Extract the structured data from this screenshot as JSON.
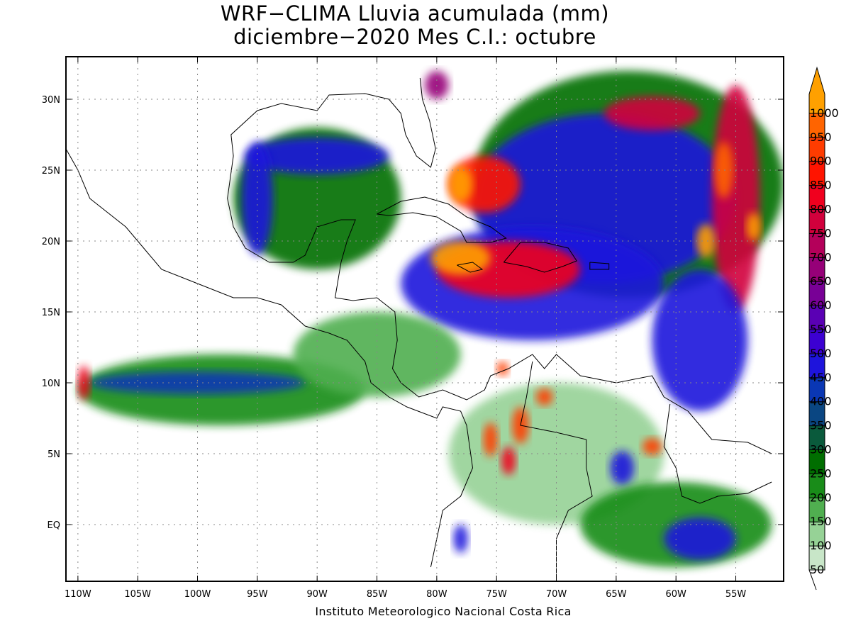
{
  "title": {
    "line1": "WRF−CLIMA Lluvia acumulada (mm)",
    "line2": "diciembre−2020 Mes C.I.: octubre"
  },
  "credit": "Instituto Meteorologico Nacional Costa Rica",
  "map": {
    "lon_range": [
      -111,
      -51
    ],
    "lat_range": [
      -4,
      33
    ],
    "lon_ticks": [
      {
        "value": -110,
        "label": "110W"
      },
      {
        "value": -105,
        "label": "105W"
      },
      {
        "value": -100,
        "label": "100W"
      },
      {
        "value": -95,
        "label": "95W"
      },
      {
        "value": -90,
        "label": "90W"
      },
      {
        "value": -85,
        "label": "85W"
      },
      {
        "value": -80,
        "label": "80W"
      },
      {
        "value": -75,
        "label": "75W"
      },
      {
        "value": -70,
        "label": "70W"
      },
      {
        "value": -65,
        "label": "65W"
      },
      {
        "value": -60,
        "label": "60W"
      },
      {
        "value": -55,
        "label": "55W"
      }
    ],
    "lat_ticks": [
      {
        "value": 30,
        "label": "30N"
      },
      {
        "value": 25,
        "label": "25N"
      },
      {
        "value": 20,
        "label": "20N"
      },
      {
        "value": 15,
        "label": "15N"
      },
      {
        "value": 10,
        "label": "10N"
      },
      {
        "value": 5,
        "label": "5N"
      },
      {
        "value": 0,
        "label": "EQ"
      }
    ],
    "grid": true
  },
  "legend": {
    "levels": [
      {
        "label": "50",
        "color": "#c8e6c8"
      },
      {
        "label": "100",
        "color": "#96d296"
      },
      {
        "label": "150",
        "color": "#50af50"
      },
      {
        "label": "200",
        "color": "#198c19"
      },
      {
        "label": "250",
        "color": "#006e00"
      },
      {
        "label": "300",
        "color": "#0a5a3c"
      },
      {
        "label": "350",
        "color": "#0a4682"
      },
      {
        "label": "400",
        "color": "#0a37b4"
      },
      {
        "label": "450",
        "color": "#1e14dc"
      },
      {
        "label": "500",
        "color": "#3c00d2"
      },
      {
        "label": "550",
        "color": "#5a00b4"
      },
      {
        "label": "600",
        "color": "#780096"
      },
      {
        "label": "650",
        "color": "#960078"
      },
      {
        "label": "700",
        "color": "#b4005a"
      },
      {
        "label": "750",
        "color": "#d2003c"
      },
      {
        "label": "800",
        "color": "#f0001e"
      },
      {
        "label": "850",
        "color": "#ff1400"
      },
      {
        "label": "900",
        "color": "#ff3c00"
      },
      {
        "label": "950",
        "color": "#ff6400"
      },
      {
        "label": "1000",
        "color": "#ffa000"
      }
    ]
  },
  "rain_cells": [
    {
      "name": "gulf-of-mexico-moist",
      "lon": -90,
      "lat": 23,
      "rx": 7,
      "ry": 5,
      "level": 4
    },
    {
      "name": "gulf-north-band",
      "lon": -90,
      "lat": 26,
      "rx": 6,
      "ry": 1.3,
      "level": 8
    },
    {
      "name": "gulf-west-band",
      "lon": -95,
      "lat": 23,
      "rx": 1.3,
      "ry": 4,
      "level": 8
    },
    {
      "name": "florida-cell",
      "lon": -80,
      "lat": 31,
      "rx": 1,
      "ry": 1,
      "level": 12
    },
    {
      "name": "atlantic-broad",
      "lon": -64,
      "lat": 24,
      "rx": 13,
      "ry": 8,
      "level": 4
    },
    {
      "name": "atlantic-blue",
      "lon": -66,
      "lat": 23,
      "rx": 11,
      "ry": 6,
      "level": 8
    },
    {
      "name": "bahamas-core",
      "lon": -76,
      "lat": 24,
      "rx": 3,
      "ry": 2,
      "level": 16
    },
    {
      "name": "bahamas-peak",
      "lon": -78,
      "lat": 24,
      "rx": 1,
      "ry": 1.3,
      "level": 19
    },
    {
      "name": "caribbean-broad",
      "lon": -72,
      "lat": 17,
      "rx": 11,
      "ry": 4,
      "level": 8
    },
    {
      "name": "caribbean-core",
      "lon": -74,
      "lat": 18,
      "rx": 6,
      "ry": 2,
      "level": 15
    },
    {
      "name": "caribbean-peak",
      "lon": -78,
      "lat": 18.8,
      "rx": 2.5,
      "ry": 1.2,
      "level": 19
    },
    {
      "name": "north-atlantic-arc",
      "lon": -62,
      "lat": 29,
      "rx": 4,
      "ry": 1.2,
      "level": 14
    },
    {
      "name": "east-band",
      "lon": -55,
      "lat": 23,
      "rx": 2,
      "ry": 8,
      "level": 14
    },
    {
      "name": "east-band-peak",
      "lon": -56,
      "lat": 25,
      "rx": 0.8,
      "ry": 2,
      "level": 18
    },
    {
      "name": "east-peak-2",
      "lon": -57.5,
      "lat": 20,
      "rx": 0.8,
      "ry": 1.2,
      "level": 19
    },
    {
      "name": "east-peak-3",
      "lon": -53.5,
      "lat": 21,
      "rx": 0.6,
      "ry": 1,
      "level": 19
    },
    {
      "name": "south-atlantic-blue",
      "lon": -58,
      "lat": 13,
      "rx": 4,
      "ry": 5,
      "level": 8
    },
    {
      "name": "pacific-itcz-green",
      "lon": -98,
      "lat": 9.5,
      "rx": 12,
      "ry": 2.5,
      "level": 3
    },
    {
      "name": "pacific-itcz-blue",
      "lon": -100,
      "lat": 10,
      "rx": 9,
      "ry": 0.8,
      "level": 7
    },
    {
      "name": "pacific-itcz-west",
      "lon": -109.5,
      "lat": 10,
      "rx": 0.5,
      "ry": 1.2,
      "level": 15
    },
    {
      "name": "central-america-light",
      "lon": -85,
      "lat": 12,
      "rx": 7,
      "ry": 3,
      "level": 2
    },
    {
      "name": "colombia-light",
      "lon": -70,
      "lat": 5,
      "rx": 9,
      "ry": 5,
      "level": 1
    },
    {
      "name": "andes-cell-1",
      "lon": -73,
      "lat": 7,
      "rx": 0.7,
      "ry": 1.3,
      "level": 17
    },
    {
      "name": "andes-cell-2",
      "lon": -75.5,
      "lat": 6,
      "rx": 0.6,
      "ry": 1.2,
      "level": 17
    },
    {
      "name": "andes-cell-3",
      "lon": -74,
      "lat": 4.5,
      "rx": 0.6,
      "ry": 1,
      "level": 15
    },
    {
      "name": "andes-cell-4",
      "lon": -71,
      "lat": 9,
      "rx": 0.7,
      "ry": 0.6,
      "level": 17
    },
    {
      "name": "andes-cell-5",
      "lon": -74.5,
      "lat": 11,
      "rx": 0.5,
      "ry": 0.5,
      "level": 17
    },
    {
      "name": "guyana-cell",
      "lon": -62,
      "lat": 5.5,
      "rx": 0.8,
      "ry": 0.6,
      "level": 17
    },
    {
      "name": "venezuela-blue",
      "lon": -64.5,
      "lat": 4,
      "rx": 1,
      "ry": 1.2,
      "level": 8
    },
    {
      "name": "amazon-green",
      "lon": -60,
      "lat": 0,
      "rx": 8,
      "ry": 3,
      "level": 3
    },
    {
      "name": "amazon-blue",
      "lon": -58,
      "lat": -1,
      "rx": 3,
      "ry": 1.5,
      "level": 8
    },
    {
      "name": "ecuador-cell",
      "lon": -78,
      "lat": -1,
      "rx": 0.6,
      "ry": 1,
      "level": 8
    }
  ],
  "coast_segments": [
    {
      "name": "mexico-pacific-coast",
      "points": [
        [
          -117,
          32
        ],
        [
          -114,
          30
        ],
        [
          -112,
          28
        ],
        [
          -110,
          25
        ],
        [
          -109,
          23
        ],
        [
          -106,
          21
        ],
        [
          -105,
          20
        ],
        [
          -103,
          18
        ],
        [
          -100,
          17
        ],
        [
          -97,
          16
        ],
        [
          -95,
          16
        ],
        [
          -93,
          15.5
        ],
        [
          -91,
          14
        ],
        [
          -89,
          13.5
        ],
        [
          -87.5,
          13
        ],
        [
          -86,
          11.5
        ],
        [
          -85.5,
          10
        ],
        [
          -84,
          9
        ],
        [
          -82.5,
          8.3
        ],
        [
          -80,
          7.5
        ],
        [
          -79.5,
          8.3
        ],
        [
          -78,
          8
        ],
        [
          -77.5,
          7
        ],
        [
          -77,
          4
        ],
        [
          -78,
          2
        ],
        [
          -79.5,
          1
        ],
        [
          -80,
          -1
        ],
        [
          -80.5,
          -3
        ]
      ]
    },
    {
      "name": "gulf-coast",
      "points": [
        [
          -97,
          26
        ],
        [
          -97.5,
          23
        ],
        [
          -97,
          21
        ],
        [
          -96,
          19.5
        ],
        [
          -94,
          18.5
        ],
        [
          -92,
          18.5
        ],
        [
          -91,
          19
        ],
        [
          -90.5,
          20
        ],
        [
          -90,
          21
        ],
        [
          -88,
          21.5
        ],
        [
          -86.8,
          21.5
        ],
        [
          -87.5,
          20
        ],
        [
          -88,
          18.5
        ],
        [
          -88.3,
          17
        ],
        [
          -88.5,
          16
        ],
        [
          -87,
          15.8
        ],
        [
          -85,
          16
        ],
        [
          -83.5,
          15
        ],
        [
          -83.3,
          13
        ],
        [
          -83.7,
          11
        ],
        [
          -83,
          10
        ],
        [
          -81.5,
          9
        ],
        [
          -79.5,
          9.5
        ],
        [
          -77.5,
          8.8
        ],
        [
          -76,
          9.5
        ],
        [
          -75.5,
          10.5
        ],
        [
          -74,
          11
        ],
        [
          -72,
          12
        ],
        [
          -71,
          11
        ],
        [
          -70,
          12
        ],
        [
          -68,
          10.5
        ],
        [
          -65,
          10
        ],
        [
          -62,
          10.5
        ],
        [
          -61,
          9
        ],
        [
          -59,
          8
        ],
        [
          -57,
          6
        ],
        [
          -54,
          5.8
        ],
        [
          -52,
          5
        ]
      ]
    },
    {
      "name": "us-gulf-coast",
      "points": [
        [
          -97,
          26
        ],
        [
          -97.2,
          27.5
        ],
        [
          -95,
          29.2
        ],
        [
          -93,
          29.7
        ],
        [
          -90,
          29.2
        ],
        [
          -89,
          30.3
        ],
        [
          -86,
          30.4
        ],
        [
          -84,
          30
        ],
        [
          -83,
          29
        ],
        [
          -82.6,
          27.5
        ],
        [
          -81.7,
          26
        ],
        [
          -80.5,
          25.2
        ],
        [
          -80.1,
          26.5
        ],
        [
          -80.6,
          28.5
        ],
        [
          -81.2,
          30
        ],
        [
          -81.4,
          31.5
        ]
      ]
    },
    {
      "name": "cuba",
      "points": [
        [
          -85,
          21.9
        ],
        [
          -83,
          22.8
        ],
        [
          -81,
          23.1
        ],
        [
          -79,
          22.6
        ],
        [
          -77.5,
          21.7
        ],
        [
          -75.5,
          21
        ],
        [
          -74.2,
          20.2
        ],
        [
          -75.5,
          19.9
        ],
        [
          -77.5,
          19.9
        ],
        [
          -78,
          20.7
        ],
        [
          -80,
          21.7
        ],
        [
          -82,
          22
        ],
        [
          -84,
          21.8
        ],
        [
          -85,
          21.9
        ]
      ]
    },
    {
      "name": "hispaniola",
      "points": [
        [
          -74.4,
          18.5
        ],
        [
          -73,
          19.9
        ],
        [
          -71,
          19.9
        ],
        [
          -69,
          19.5
        ],
        [
          -68.3,
          18.6
        ],
        [
          -69.5,
          18.2
        ],
        [
          -71,
          17.8
        ],
        [
          -72.5,
          18.2
        ],
        [
          -74.4,
          18.5
        ]
      ]
    },
    {
      "name": "jamaica",
      "points": [
        [
          -78.3,
          18.3
        ],
        [
          -77,
          18.5
        ],
        [
          -76.2,
          18
        ],
        [
          -77.2,
          17.8
        ],
        [
          -78.3,
          18.3
        ]
      ]
    },
    {
      "name": "puerto-rico",
      "points": [
        [
          -67.2,
          18.5
        ],
        [
          -65.6,
          18.4
        ],
        [
          -65.6,
          18
        ],
        [
          -67.2,
          18
        ],
        [
          -67.2,
          18.5
        ]
      ]
    },
    {
      "name": "south-america-boundary-1",
      "points": [
        [
          -72,
          11.5
        ],
        [
          -72.5,
          9
        ],
        [
          -73,
          7
        ],
        [
          -70,
          6.5
        ],
        [
          -67.5,
          6
        ],
        [
          -67.5,
          4
        ],
        [
          -67,
          2
        ],
        [
          -69,
          1
        ],
        [
          -70,
          -1
        ],
        [
          -70,
          -4
        ]
      ]
    },
    {
      "name": "south-america-boundary-2",
      "points": [
        [
          -60.5,
          8.5
        ],
        [
          -61,
          5.5
        ],
        [
          -60,
          4
        ],
        [
          -59.5,
          2
        ],
        [
          -58,
          1.5
        ],
        [
          -56.5,
          2
        ],
        [
          -54,
          2.2
        ],
        [
          -52,
          3
        ]
      ]
    }
  ]
}
